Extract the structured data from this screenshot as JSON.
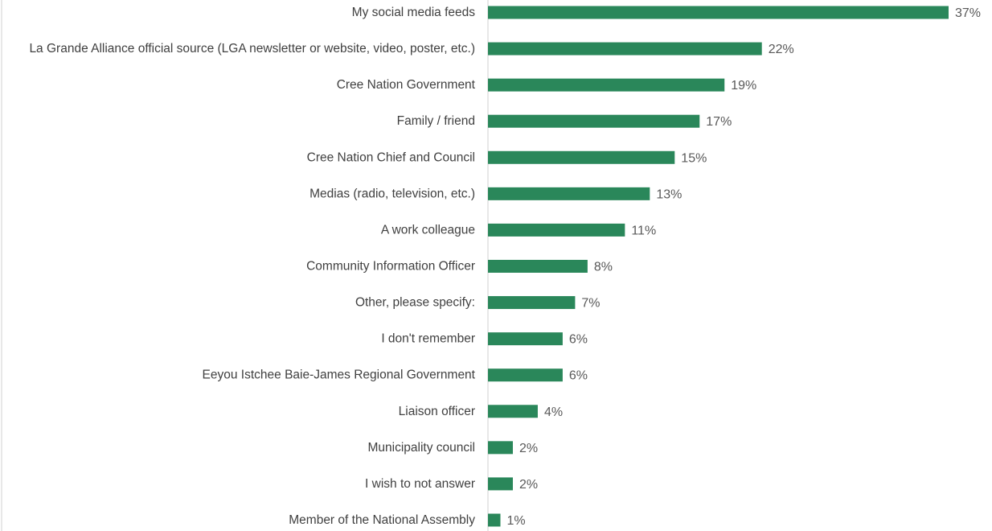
{
  "chart_data": {
    "type": "bar",
    "orientation": "horizontal",
    "categories": [
      "My social media feeds",
      "La Grande Alliance official source (LGA newsletter or website, video, poster, etc.)",
      "Cree Nation Government",
      "Family / friend",
      "Cree Nation Chief and Council",
      "Medias (radio, television, etc.)",
      "A work colleague",
      "Community Information Officer",
      "Other, please specify:",
      "I don't remember",
      "Eeyou Istchee Baie-James Regional Government",
      "Liaison officer",
      "Municipality council",
      "I wish to not answer",
      "Member of the National Assembly"
    ],
    "values": [
      37,
      22,
      19,
      17,
      15,
      13,
      11,
      8,
      7,
      6,
      6,
      4,
      2,
      2,
      1
    ],
    "value_labels": [
      "37%",
      "22%",
      "19%",
      "17%",
      "15%",
      "13%",
      "11%",
      "8%",
      "7%",
      "6%",
      "6%",
      "4%",
      "2%",
      "2%",
      "1%"
    ],
    "xlim": [
      0,
      37
    ],
    "grid": false,
    "legend": "none",
    "colors": {
      "bar": "#2a875a",
      "axis": "#d0d0d0",
      "category_text": "#404040",
      "value_text": "#595959"
    }
  }
}
